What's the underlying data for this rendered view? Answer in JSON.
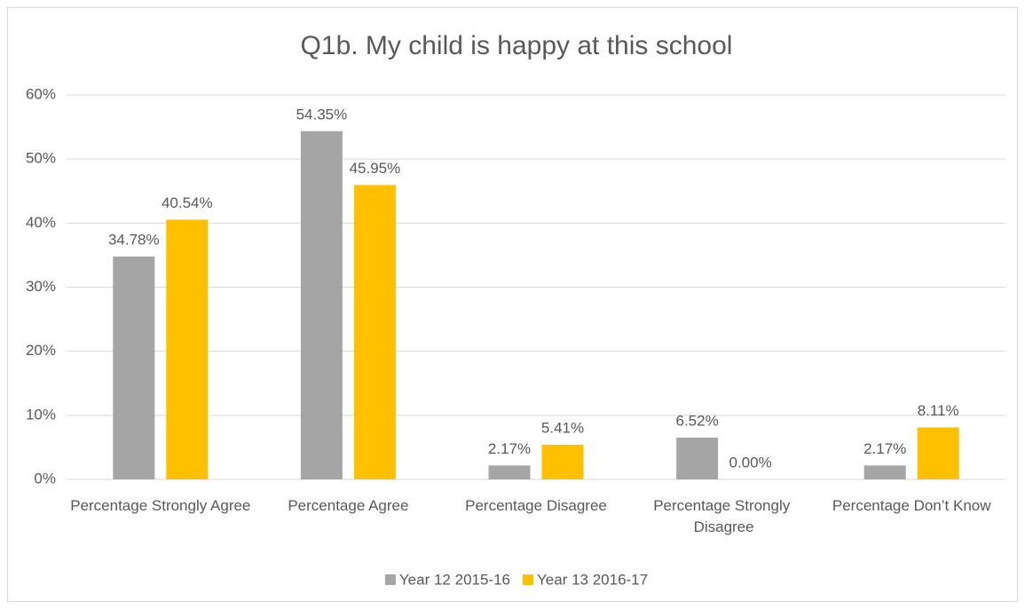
{
  "chart_data": {
    "type": "bar",
    "title": "Q1b. My child is happy at this school",
    "categories": [
      "Percentage Strongly Agree",
      "Percentage Agree",
      "Percentage Disagree",
      "Percentage Strongly Disagree",
      "Percentage Don’t Know"
    ],
    "series": [
      {
        "name": "Year 12 2015-16",
        "color": "#a5a5a5",
        "values": [
          34.78,
          54.35,
          2.17,
          6.52,
          2.17
        ],
        "value_labels": [
          "34.78%",
          "54.35%",
          "2.17%",
          "6.52%",
          "2.17%"
        ]
      },
      {
        "name": "Year 13 2016-17",
        "color": "#ffc000",
        "values": [
          40.54,
          45.95,
          5.41,
          0,
          8.11
        ],
        "value_labels": [
          "40.54%",
          "45.95%",
          "5.41%",
          "0.00%",
          "8.11%"
        ]
      }
    ],
    "ylim": [
      0,
      60
    ],
    "yticks": [
      {
        "value": 0,
        "label": "0%"
      },
      {
        "value": 10,
        "label": "10%"
      },
      {
        "value": 20,
        "label": "20%"
      },
      {
        "value": 30,
        "label": "30%"
      },
      {
        "value": 40,
        "label": "40%"
      },
      {
        "value": 50,
        "label": "50%"
      },
      {
        "value": 60,
        "label": "60%"
      }
    ],
    "grid": true,
    "legend": "bottom"
  }
}
